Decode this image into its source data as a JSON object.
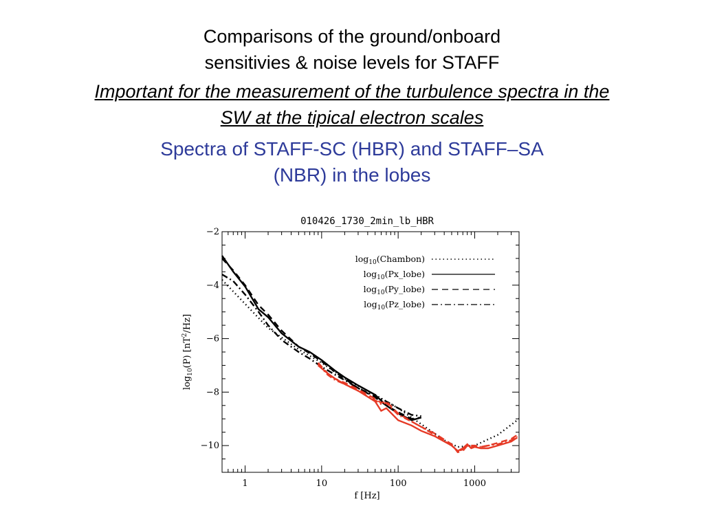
{
  "slide": {
    "title_line1": "Comparisons of the ground/onboard",
    "title_line2": "sensitivies & noise levels for STAFF",
    "subtitle_line1": "Important for the measurement of the turbulence spectra in the",
    "subtitle_line2": "SW at the tipical electron scales",
    "section_line1": "Spectra of STAFF-SC (HBR) and STAFF–SA",
    "section_line2": "(NBR) in the lobes",
    "section_color": "#2e3b9a"
  },
  "chart_data": {
    "type": "line",
    "title": "010426_1730_2min_lb_HBR",
    "xlabel": "f [Hz]",
    "ylabel": "log10(P) [nT²/Hz]",
    "x_scale": "log",
    "xlim": [
      0.5,
      3800
    ],
    "ylim": [
      -11,
      -2
    ],
    "x_ticks": [
      {
        "value": 1,
        "label": "1"
      },
      {
        "value": 10,
        "label": "10"
      },
      {
        "value": 100,
        "label": "100"
      },
      {
        "value": 1000,
        "label": "1000"
      }
    ],
    "y_ticks": [
      {
        "value": -2,
        "label": "−2"
      },
      {
        "value": -4,
        "label": "−4"
      },
      {
        "value": -6,
        "label": "−6"
      },
      {
        "value": -8,
        "label": "−8"
      },
      {
        "value": -10,
        "label": "−10"
      }
    ],
    "legend_position": "top-right",
    "legend": [
      {
        "text": "log10(Chambon)",
        "style": "dotted"
      },
      {
        "text": "log10(Px_lobe)",
        "style": "solid"
      },
      {
        "text": "log10(Py_lobe)",
        "style": "dashed"
      },
      {
        "text": "log10(Pz_lobe)",
        "style": "dash-dot"
      }
    ],
    "series": [
      {
        "source": "chambon",
        "style": "dotted",
        "color": "#000000",
        "x": [
          0.5,
          1,
          2,
          5,
          10,
          20,
          50,
          100,
          200,
          400,
          600,
          1000,
          2000,
          3800
        ],
        "y": [
          -3.8,
          -4.7,
          -5.6,
          -6.4,
          -6.9,
          -7.5,
          -8.1,
          -8.6,
          -9.2,
          -9.8,
          -10.05,
          -10.0,
          -9.6,
          -9.0
        ]
      },
      {
        "source": "HBR",
        "style": "solid",
        "color": "#000000",
        "x": [
          0.5,
          0.7,
          1,
          1.5,
          2,
          3,
          5,
          7,
          10,
          15,
          20,
          30,
          50,
          70,
          100,
          150,
          200
        ],
        "y": [
          -2.9,
          -3.5,
          -4.05,
          -4.9,
          -5.2,
          -5.8,
          -6.3,
          -6.5,
          -6.8,
          -7.2,
          -7.45,
          -7.75,
          -8.1,
          -8.5,
          -8.8,
          -9.05,
          -8.95
        ]
      },
      {
        "source": "HBR",
        "style": "dashed",
        "color": "#000000",
        "x": [
          0.5,
          0.7,
          1,
          1.5,
          2,
          3,
          5,
          7,
          10,
          15,
          20,
          30,
          50,
          70,
          100,
          150,
          200
        ],
        "y": [
          -3.0,
          -3.45,
          -4.0,
          -4.75,
          -5.1,
          -5.7,
          -6.3,
          -6.55,
          -6.85,
          -7.25,
          -7.5,
          -7.85,
          -8.2,
          -8.5,
          -8.75,
          -9.0,
          -8.95
        ]
      },
      {
        "source": "HBR",
        "style": "dash-dot",
        "color": "#000000",
        "x": [
          0.5,
          0.7,
          1,
          1.5,
          2,
          3,
          5,
          7,
          10,
          15,
          20,
          30,
          50,
          70,
          100,
          150,
          200
        ],
        "y": [
          -3.6,
          -3.85,
          -4.35,
          -5.0,
          -5.5,
          -6.05,
          -6.5,
          -6.75,
          -7.05,
          -7.35,
          -7.55,
          -7.85,
          -8.15,
          -8.35,
          -8.6,
          -8.85,
          -8.9
        ]
      },
      {
        "source": "NBR",
        "style": "solid",
        "color": "#e63a26",
        "x": [
          9,
          12,
          15,
          20,
          30,
          50,
          60,
          70,
          100,
          150,
          200,
          300,
          500,
          600,
          700,
          800,
          900,
          1000,
          1200,
          1500,
          2000,
          3000,
          3600
        ],
        "y": [
          -7.0,
          -7.3,
          -7.5,
          -7.7,
          -7.95,
          -8.35,
          -8.7,
          -8.6,
          -9.05,
          -9.25,
          -9.45,
          -9.65,
          -10.0,
          -10.2,
          -10.1,
          -9.95,
          -10.1,
          -10.05,
          -10.1,
          -10.1,
          -10.0,
          -9.85,
          -9.7
        ]
      },
      {
        "source": "NBR",
        "style": "dashed",
        "color": "#e63a26",
        "x": [
          9,
          12,
          15,
          20,
          30,
          50,
          60,
          70,
          100,
          150,
          200,
          300,
          500,
          600,
          700,
          800,
          900,
          1000,
          1200,
          1500,
          2000,
          3000,
          3600
        ],
        "y": [
          -6.9,
          -7.3,
          -7.5,
          -7.65,
          -7.9,
          -8.25,
          -8.4,
          -8.35,
          -8.8,
          -9.1,
          -9.3,
          -9.55,
          -9.95,
          -10.25,
          -10.2,
          -10.0,
          -10.0,
          -10.0,
          -10.05,
          -10.0,
          -9.9,
          -9.75,
          -9.6
        ]
      },
      {
        "source": "NBR",
        "style": "dash-dot",
        "color": "#e63a26",
        "x": [
          9,
          12,
          15,
          20,
          30,
          50,
          60,
          70,
          100,
          150,
          200,
          300,
          500,
          600,
          700,
          800,
          900,
          1000,
          1200,
          1500,
          2000,
          3000,
          3600
        ],
        "y": [
          -6.95,
          -7.35,
          -7.55,
          -7.7,
          -7.95,
          -8.3,
          -8.45,
          -8.4,
          -8.85,
          -9.1,
          -9.3,
          -9.6,
          -10.0,
          -10.2,
          -10.15,
          -10.0,
          -10.05,
          -10.0,
          -10.05,
          -10.0,
          -9.95,
          -9.8,
          -9.65
        ]
      }
    ]
  }
}
